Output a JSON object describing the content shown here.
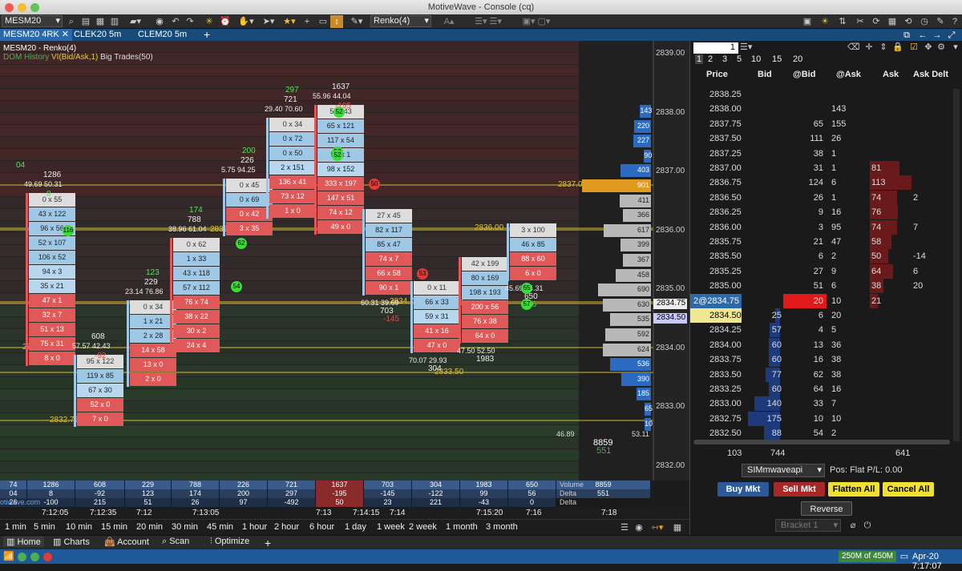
{
  "title": "MotiveWave - Console (cq)",
  "toolbar": {
    "symbol": "MESM20",
    "bar_type": "Renko(4)"
  },
  "tabs": [
    "MESM20 4RK",
    "CLEK20 5m",
    "CLEM20 5m"
  ],
  "tab_add": "+",
  "tab_close": "✕",
  "chart": {
    "title": "MESM20 - Renko(4)",
    "dom_history": "DOM History",
    "vi_label": "VI(Bid/Ask,1)",
    "big_trades": "Big Trades(50)",
    "price_labels": [
      "2839.00",
      "2838.00",
      "2837.00",
      "2836.00",
      "2835.00",
      "2834.00",
      "2833.00",
      "2832.00"
    ],
    "current_price": "2834.75",
    "bid_price": "2834.50",
    "line_labels": [
      "2837.00",
      "2836.00",
      "2834.00",
      "2833.50",
      "2832.75",
      "2836.00",
      "2833.50",
      "2834.75"
    ],
    "volume_bars": [
      "143",
      "220",
      "227",
      "90",
      "403",
      "901",
      "411",
      "366",
      "617",
      "399",
      "367",
      "458",
      "690",
      "630",
      "535",
      "592",
      "624",
      "536",
      "390",
      "185",
      "65",
      "10"
    ],
    "small_labels": [
      "46.89",
      "53.11"
    ],
    "bottom_value": "8859",
    "bottom_delta": "551",
    "columns": [
      {
        "ohd": "04",
        "total": "",
        "delta": "",
        "hl": "",
        "cells": []
      },
      {
        "ohd": "",
        "total": "1286",
        "delta": "8",
        "hl": "49.69  50.31",
        "cells": [
          "0 x 55",
          "43 x 122",
          "96 x 56",
          "52 x 107",
          "106 x 52",
          "94 x 3",
          "35 x 21",
          "47 x 1",
          "32 x 7",
          "51 x 13",
          "75 x 31",
          "8 x 0"
        ]
      },
      {
        "ohd": "",
        "total": "608",
        "delta": "-92",
        "hl": "57.57  42.43",
        "cells": [
          "95 x 122",
          "119 x 85",
          "67 x 30",
          "52 x 0",
          "7 x 0"
        ]
      },
      {
        "ohd": "123",
        "total": "229",
        "delta": "",
        "hl": "23.14  76.86",
        "cells": [
          "0 x 34",
          "1 x 21",
          "2 x 28",
          "14 x 58",
          "13 x 0",
          "2 x 0"
        ]
      },
      {
        "ohd": "174",
        "total": "788",
        "delta": "",
        "hl": "38.96  61.04",
        "cells": [
          "0 x 62",
          "1 x 33",
          "43 x 118",
          "57 x 112",
          "76 x 74",
          "38 x 22",
          "30 x 2",
          "24 x 4"
        ]
      },
      {
        "ohd": "200",
        "total": "226",
        "delta": "",
        "hl": "5.75  94.25",
        "cells": [
          "0 x 45",
          "0 x 69",
          "0 x 42",
          "3 x 35"
        ]
      },
      {
        "ohd": "297",
        "total": "721",
        "delta": "",
        "hl": "29.40  70.60",
        "cells": [
          "0 x 34",
          "0 x 72",
          "0 x 50",
          "2 x 151",
          "136 x 41",
          "73 x 12",
          "1 x 0"
        ]
      },
      {
        "ohd": "",
        "total": "1637",
        "delta": "-195",
        "hl": "55.96  44.04",
        "cells": [
          "52 143",
          "65 x 121",
          "117 x 54",
          "50 x 1",
          "98 x 152",
          "333 x 197",
          "147 x 51",
          "74 x 12",
          "49 x 0"
        ]
      },
      {
        "ohd": "",
        "total": "703",
        "delta": "-145",
        "hl": "60.31  39.69",
        "cells": [
          "27 x 45",
          "82 x 117",
          "85 x 47",
          "74 x 7",
          "66 x 58",
          "90 x 1"
        ]
      },
      {
        "ohd": "",
        "total": "304",
        "delta": "",
        "hl": "70.07  29.93",
        "cells": [
          "0 x 11",
          "66 x 33",
          "59 x 31",
          "41 x 16",
          "47 x 0"
        ]
      },
      {
        "ohd": "",
        "total": "1983",
        "delta": "",
        "hl": "47.50  52.50",
        "cells": [
          "42 x 199",
          "80 x 169",
          "198 x 193",
          "200 x 56",
          "76 x 38",
          "64 x 0"
        ]
      },
      {
        "ohd": "",
        "total": "650",
        "delta": "56",
        "hl": "45.69  54.31",
        "cells": [
          "3 x 100",
          "46 x 85",
          "88 x 60",
          "6 x 0"
        ]
      }
    ],
    "big_trade_markers": [
      "116",
      "62",
      "54",
      "52",
      "50",
      "52",
      "50",
      "53",
      "65",
      "57"
    ]
  },
  "summary": {
    "volume": [
      "74",
      "1286",
      "608",
      "229",
      "788",
      "226",
      "721",
      "1637",
      "703",
      "304",
      "1983",
      "650",
      "8859"
    ],
    "delta": [
      "04",
      "8",
      "-92",
      "123",
      "174",
      "200",
      "297",
      "-195",
      "-145",
      "-122",
      "99",
      "56",
      "551"
    ],
    "delta_change": [
      "26",
      "-100",
      "215",
      "51",
      "26",
      "97",
      "-492",
      "50",
      "23",
      "221",
      "-43",
      "0"
    ],
    "labels": [
      "Volume",
      "Delta",
      "Delta Chang"
    ],
    "watermark": "otiwave.com"
  },
  "time_labels": [
    "7:12:05",
    "7:12:35",
    "7:12",
    "7:13:05",
    "7:13",
    "7:14:15",
    "7:14",
    "7:15:20",
    "7:16",
    "7:18"
  ],
  "periods": [
    "1 min",
    "5 min",
    "10 min",
    "15 min",
    "20 min",
    "30 min",
    "45 min",
    "1 hour",
    "2 hour",
    "6 hour",
    "1 day",
    "1 week",
    "2 week",
    "1 month",
    "3 month"
  ],
  "nav": [
    {
      "label": "Home",
      "icon": "home-icon"
    },
    {
      "label": "Charts",
      "icon": "charts-icon"
    },
    {
      "label": "Account",
      "icon": "account-icon"
    },
    {
      "label": "Scan",
      "icon": "scan-icon"
    },
    {
      "label": "Optimize",
      "icon": "optimize-icon"
    }
  ],
  "status": {
    "memory": "250M of 450M",
    "datetime": "Apr-20 7:17:07"
  },
  "dom": {
    "qty": "1",
    "qty_presets": [
      "1",
      "2",
      "3",
      "5",
      "10",
      "15",
      "20"
    ],
    "headers": [
      "Price",
      "Bid",
      "@Bid",
      "@Ask",
      "Ask",
      "Ask Delt"
    ],
    "rows": [
      {
        "price": "2838.25",
        "bid": "",
        "atbid": "",
        "atask": "",
        "ask": "",
        "delta": ""
      },
      {
        "price": "2838.00",
        "bid": "",
        "atbid": "",
        "atask": "143",
        "ask": "",
        "delta": ""
      },
      {
        "price": "2837.75",
        "bid": "",
        "atbid": "65",
        "atask": "155",
        "ask": "",
        "delta": ""
      },
      {
        "price": "2837.50",
        "bid": "",
        "atbid": "111",
        "atask": "26",
        "ask": "",
        "delta": ""
      },
      {
        "price": "2837.25",
        "bid": "",
        "atbid": "38",
        "atask": "1",
        "ask": "",
        "delta": ""
      },
      {
        "price": "2837.00",
        "bid": "",
        "atbid": "31",
        "atask": "1",
        "ask": "81",
        "delta": ""
      },
      {
        "price": "2836.75",
        "bid": "",
        "atbid": "124",
        "atask": "6",
        "ask": "113",
        "delta": ""
      },
      {
        "price": "2836.50",
        "bid": "",
        "atbid": "26",
        "atask": "1",
        "ask": "74",
        "delta": "2"
      },
      {
        "price": "2836.25",
        "bid": "",
        "atbid": "9",
        "atask": "16",
        "ask": "76",
        "delta": ""
      },
      {
        "price": "2836.00",
        "bid": "",
        "atbid": "3",
        "atask": "95",
        "ask": "74",
        "delta": "7"
      },
      {
        "price": "2835.75",
        "bid": "",
        "atbid": "21",
        "atask": "47",
        "ask": "58",
        "delta": ""
      },
      {
        "price": "2835.50",
        "bid": "",
        "atbid": "6",
        "atask": "2",
        "ask": "50",
        "delta": "-14"
      },
      {
        "price": "2835.25",
        "bid": "",
        "atbid": "27",
        "atask": "9",
        "ask": "64",
        "delta": "6"
      },
      {
        "price": "2835.00",
        "bid": "",
        "atbid": "51",
        "atask": "6",
        "ask": "38",
        "delta": "20"
      },
      {
        "price": "2@2834.75",
        "bid": "",
        "atbid": "20",
        "atask": "10",
        "ask": "21",
        "delta": ""
      },
      {
        "price": "2834.50",
        "bid": "25",
        "atbid": "6",
        "atask": "20",
        "ask": "",
        "delta": ""
      },
      {
        "price": "2834.25",
        "bid": "57",
        "atbid": "4",
        "atask": "5",
        "ask": "",
        "delta": ""
      },
      {
        "price": "2834.00",
        "bid": "60",
        "atbid": "13",
        "atask": "36",
        "ask": "",
        "delta": ""
      },
      {
        "price": "2833.75",
        "bid": "60",
        "atbid": "16",
        "atask": "38",
        "ask": "",
        "delta": ""
      },
      {
        "price": "2833.50",
        "bid": "77",
        "atbid": "62",
        "atask": "38",
        "ask": "",
        "delta": ""
      },
      {
        "price": "2833.25",
        "bid": "60",
        "atbid": "64",
        "atask": "16",
        "ask": "",
        "delta": ""
      },
      {
        "price": "2833.00",
        "bid": "140",
        "atbid": "33",
        "atask": "7",
        "ask": "",
        "delta": ""
      },
      {
        "price": "2832.75",
        "bid": "175",
        "atbid": "10",
        "atask": "10",
        "ask": "",
        "delta": ""
      },
      {
        "price": "2832.50",
        "bid": "88",
        "atbid": "54",
        "atask": "2",
        "ask": "",
        "delta": ""
      }
    ],
    "totals": {
      "bid": "103",
      "atbid": "744",
      "ask": "641"
    },
    "account": "SIMmwaveapi",
    "pos": "Pos:  Flat  P/L:  0.00",
    "buttons": {
      "buy": "Buy Mkt",
      "sell": "Sell Mkt",
      "flatten": "Flatten All",
      "cancel": "Cancel All",
      "reverse": "Reverse"
    },
    "bracket": "Bracket 1"
  }
}
